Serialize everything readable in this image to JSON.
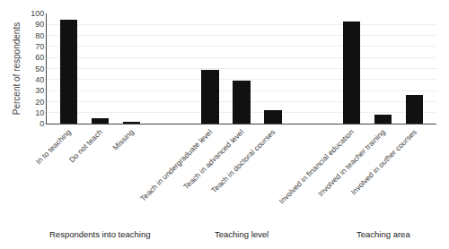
{
  "chart_data": {
    "type": "bar",
    "categories": [
      "In to teaching",
      "Do not teach",
      "Missing",
      "Teach in undergraduate level",
      "Teach in advanced level",
      "Teach in doctoral courses",
      "Involved in financial education",
      "Involved in teacher training",
      "Involved in outher courses"
    ],
    "values": [
      94,
      5,
      2,
      49,
      39,
      12,
      93,
      8,
      26
    ],
    "color": "#111111",
    "ylabel": "Percent of respondents",
    "ylim": [
      0,
      100
    ],
    "yticks": [
      0,
      10,
      20,
      30,
      40,
      50,
      60,
      70,
      80,
      90,
      100
    ],
    "grid": true,
    "annotations": [
      {
        "text": "Respondents into teaching",
        "categories": [
          "In to teaching",
          "Do not teach",
          "Missing"
        ]
      },
      {
        "text": "Teaching level",
        "categories": [
          "Teach in undergraduate level",
          "Teach in advanced level",
          "Teach in doctoral courses"
        ]
      },
      {
        "text": "Teaching area",
        "categories": [
          "Involved in financial education",
          "Involved in teacher training",
          "Involved in outher courses"
        ]
      }
    ]
  }
}
